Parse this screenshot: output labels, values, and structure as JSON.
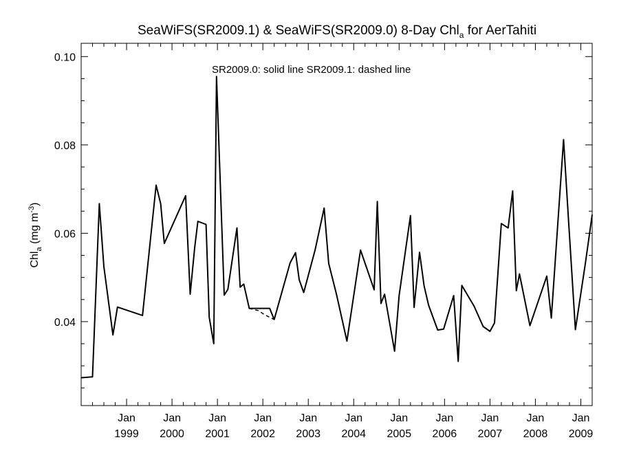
{
  "chart_data": {
    "type": "line",
    "title_main": "SeaWiFS(SR2009.1) & SeaWiFS(SR2009.0) 8-Day Chl",
    "title_sub": "a",
    "title_tail": " for AerTahiti",
    "ylabel_main": "Chl",
    "ylabel_sub": "a",
    "ylabel_unit": " (mg m",
    "ylabel_exp": "-3",
    "ylabel_close": ")",
    "annotation": "SR2009.0: solid line   SR2009.1: dashed line",
    "ylim": [
      0.021,
      0.103
    ],
    "xlim": [
      1998.0,
      2009.25
    ],
    "y_ticks": [
      0.04,
      0.06,
      0.08,
      0.1
    ],
    "y_tick_labels": [
      "0.04",
      "0.06",
      "0.08",
      "0.10"
    ],
    "x_ticks": [
      {
        "pos": 1999.0,
        "month": "Jan",
        "year": "1999"
      },
      {
        "pos": 2000.0,
        "month": "Jan",
        "year": "2000"
      },
      {
        "pos": 2001.0,
        "month": "Jan",
        "year": "2001"
      },
      {
        "pos": 2002.0,
        "month": "Jan",
        "year": "2002"
      },
      {
        "pos": 2003.0,
        "month": "Jan",
        "year": "2003"
      },
      {
        "pos": 2004.0,
        "month": "Jan",
        "year": "2004"
      },
      {
        "pos": 2005.0,
        "month": "Jan",
        "year": "2005"
      },
      {
        "pos": 2006.0,
        "month": "Jan",
        "year": "2006"
      },
      {
        "pos": 2007.0,
        "month": "Jan",
        "year": "2007"
      },
      {
        "pos": 2008.0,
        "month": "Jan",
        "year": "2008"
      },
      {
        "pos": 2009.0,
        "month": "Jan",
        "year": "2009"
      }
    ],
    "series": [
      {
        "style": "solid",
        "x": [
          1998.0,
          1998.25,
          1998.4,
          1998.5,
          1998.7,
          1998.8,
          1999.35,
          1999.65,
          1999.75,
          1999.83,
          2000.3,
          2000.4,
          2000.5,
          2000.57,
          2000.75,
          2000.82,
          2000.92,
          2000.98,
          2001.15,
          2001.23,
          2001.43,
          2001.5,
          2001.58,
          2001.7,
          2002.05,
          2002.15,
          2002.25,
          2002.6,
          2002.72,
          2002.8,
          2002.9,
          2003.15,
          2003.35,
          2003.45,
          2003.62,
          2003.85,
          2004.15,
          2004.45,
          2004.52,
          2004.6,
          2004.68,
          2004.9,
          2005.0,
          2005.25,
          2005.33,
          2005.45,
          2005.55,
          2005.65,
          2005.85,
          2005.98,
          2006.2,
          2006.3,
          2006.38,
          2006.65,
          2006.85,
          2007.0,
          2007.1,
          2007.25,
          2007.4,
          2007.5,
          2007.58,
          2007.65,
          2007.88,
          2008.25,
          2008.35,
          2008.62,
          2008.72,
          2008.88,
          2009.1,
          2009.25
        ],
        "y": [
          0.0273,
          0.0275,
          0.0667,
          0.0525,
          0.037,
          0.0433,
          0.0414,
          0.0709,
          0.0667,
          0.0577,
          0.0685,
          0.0462,
          0.0568,
          0.0627,
          0.062,
          0.041,
          0.035,
          0.0955,
          0.046,
          0.0473,
          0.0612,
          0.0478,
          0.0485,
          0.043,
          0.043,
          0.043,
          0.0405,
          0.0533,
          0.0556,
          0.0495,
          0.0466,
          0.0562,
          0.0657,
          0.0532,
          0.0462,
          0.0356,
          0.0562,
          0.0472,
          0.0672,
          0.0441,
          0.0462,
          0.0333,
          0.0459,
          0.064,
          0.0432,
          0.0557,
          0.0481,
          0.0437,
          0.0381,
          0.0383,
          0.0459,
          0.031,
          0.0482,
          0.0435,
          0.0389,
          0.0378,
          0.0397,
          0.0622,
          0.0612,
          0.0696,
          0.047,
          0.0508,
          0.0391,
          0.0503,
          0.0408,
          0.0812,
          0.0645,
          0.0382,
          0.0532,
          0.0642
        ]
      },
      {
        "style": "dashed",
        "x": [
          2001.7,
          2001.9,
          2002.05,
          2002.15,
          2002.25
        ],
        "y": [
          0.043,
          0.0425,
          0.0415,
          0.041,
          0.0405
        ]
      }
    ]
  }
}
